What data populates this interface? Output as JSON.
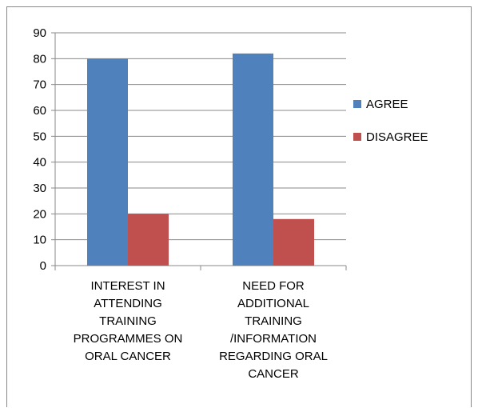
{
  "chart_data": {
    "type": "bar",
    "categories": [
      [
        "INTEREST IN",
        "ATTENDING",
        "TRAINING",
        "PROGRAMMES ON",
        "ORAL CANCER"
      ],
      [
        "NEED FOR",
        "ADDITIONAL",
        "TRAINING",
        "/INFORMATION",
        "REGARDING ORAL",
        "CANCER"
      ]
    ],
    "series": [
      {
        "name": "AGREE",
        "values": [
          80,
          82
        ],
        "color": "#4f81bd"
      },
      {
        "name": "DISAGREE",
        "values": [
          20,
          18
        ],
        "color": "#c0504d"
      }
    ],
    "ylim": [
      0,
      90
    ],
    "yticks": [
      0,
      10,
      20,
      30,
      40,
      50,
      60,
      70,
      80,
      90
    ],
    "grid": true,
    "legend": "right"
  }
}
